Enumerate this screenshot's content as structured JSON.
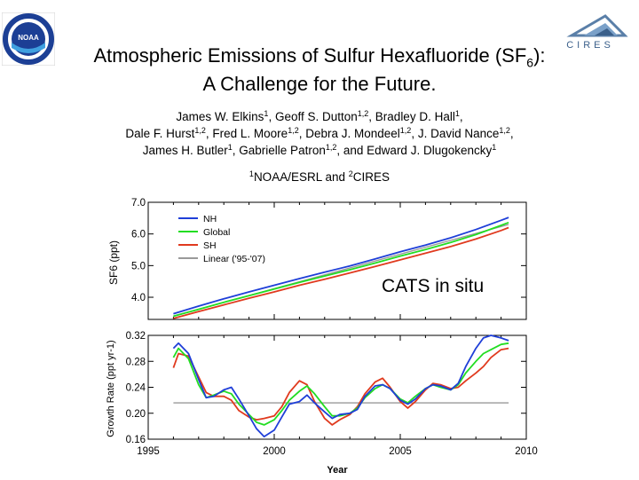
{
  "header": {
    "title_line1_pre": "Atmospheric Emissions of Sulfur Hexafluoride (SF",
    "title_line1_sub": "6",
    "title_line1_post": "):",
    "title_line2": "A Challenge for the Future.",
    "authors": [
      {
        "name": "James W. Elkins",
        "aff": "1"
      },
      {
        "name": "Geoff S. Dutton",
        "aff": "1,2"
      },
      {
        "name": "Bradley D. Hall",
        "aff": "1"
      },
      {
        "name": "Dale F. Hurst",
        "aff": "1,2"
      },
      {
        "name": "Fred L. Moore",
        "aff": "1,2"
      },
      {
        "name": "Debra J. Mondeel",
        "aff": "1,2"
      },
      {
        "name": "J. David Nance",
        "aff": "1,2"
      },
      {
        "name": "James H. Butler",
        "aff": "1"
      },
      {
        "name": "Gabrielle Patron",
        "aff": "1,2"
      },
      {
        "name": "Edward J. Dlugokencky",
        "aff": "1"
      }
    ],
    "and_word": "and",
    "affiliation": {
      "n1": "1",
      "org1": "NOAA/ESRL",
      "and": "and",
      "n2": "2",
      "org2": "CIRES"
    }
  },
  "logos": {
    "noaa": "NOAA",
    "cires": "CIRES"
  },
  "annotation": "CATS in situ",
  "colors": {
    "NH": "#1f3fd8",
    "Global": "#22dd22",
    "SH": "#e03a1e",
    "Linear": "#9a9a9a"
  },
  "chart_data": [
    {
      "type": "line",
      "ylabel": "SF6 (ppt)",
      "ylim": [
        3.3,
        7.0
      ],
      "xlim": [
        1995,
        2010
      ],
      "yticks": [
        "4.0",
        "5.0",
        "6.0",
        "7.0"
      ],
      "legend_position": "top-left",
      "series": [
        {
          "name": "NH",
          "color": "#1f3fd8",
          "points": [
            [
              1996.0,
              3.48
            ],
            [
              1997.0,
              3.72
            ],
            [
              1998.0,
              3.95
            ],
            [
              1999.0,
              4.17
            ],
            [
              2000.0,
              4.38
            ],
            [
              2001.0,
              4.59
            ],
            [
              2002.0,
              4.79
            ],
            [
              2003.0,
              4.99
            ],
            [
              2004.0,
              5.21
            ],
            [
              2005.0,
              5.44
            ],
            [
              2006.0,
              5.65
            ],
            [
              2007.0,
              5.88
            ],
            [
              2008.0,
              6.14
            ],
            [
              2009.0,
              6.43
            ],
            [
              2009.3,
              6.52
            ]
          ]
        },
        {
          "name": "Global",
          "color": "#22dd22",
          "points": [
            [
              1996.0,
              3.4
            ],
            [
              1997.0,
              3.62
            ],
            [
              1998.0,
              3.84
            ],
            [
              1999.0,
              4.05
            ],
            [
              2000.0,
              4.26
            ],
            [
              2001.0,
              4.47
            ],
            [
              2002.0,
              4.67
            ],
            [
              2003.0,
              4.87
            ],
            [
              2004.0,
              5.08
            ],
            [
              2005.0,
              5.3
            ],
            [
              2006.0,
              5.51
            ],
            [
              2007.0,
              5.73
            ],
            [
              2008.0,
              5.98
            ],
            [
              2009.0,
              6.27
            ],
            [
              2009.3,
              6.36
            ]
          ]
        },
        {
          "name": "SH",
          "color": "#e03a1e",
          "points": [
            [
              1996.0,
              3.33
            ],
            [
              1997.0,
              3.55
            ],
            [
              1998.0,
              3.76
            ],
            [
              1999.0,
              3.97
            ],
            [
              2000.0,
              4.17
            ],
            [
              2001.0,
              4.38
            ],
            [
              2002.0,
              4.57
            ],
            [
              2003.0,
              4.77
            ],
            [
              2004.0,
              4.97
            ],
            [
              2005.0,
              5.18
            ],
            [
              2006.0,
              5.39
            ],
            [
              2007.0,
              5.6
            ],
            [
              2008.0,
              5.84
            ],
            [
              2009.0,
              6.11
            ],
            [
              2009.3,
              6.2
            ]
          ]
        },
        {
          "name": "Linear ('95-'07)",
          "color": "#9a9a9a",
          "points": [
            [
              1996.0,
              3.4
            ],
            [
              2009.3,
              6.3
            ]
          ]
        }
      ]
    },
    {
      "type": "line",
      "ylabel": "Growth Rate (ppt yr-1)",
      "xlabel": "Year",
      "ylim": [
        0.16,
        0.32
      ],
      "xlim": [
        1995,
        2010
      ],
      "yticks": [
        "0.16",
        "0.20",
        "0.24",
        "0.28",
        "0.32"
      ],
      "xticks": [
        "1995",
        "2000",
        "2005",
        "2010"
      ],
      "series": [
        {
          "name": "NH",
          "color": "#1f3fd8",
          "points": [
            [
              1996.0,
              0.3
            ],
            [
              1996.2,
              0.308
            ],
            [
              1996.6,
              0.292
            ],
            [
              1997.0,
              0.252
            ],
            [
              1997.3,
              0.224
            ],
            [
              1997.6,
              0.226
            ],
            [
              1998.0,
              0.236
            ],
            [
              1998.3,
              0.24
            ],
            [
              1998.6,
              0.222
            ],
            [
              1999.0,
              0.196
            ],
            [
              1999.3,
              0.176
            ],
            [
              1999.6,
              0.164
            ],
            [
              2000.0,
              0.174
            ],
            [
              2000.3,
              0.194
            ],
            [
              2000.6,
              0.214
            ],
            [
              2001.0,
              0.218
            ],
            [
              2001.3,
              0.228
            ],
            [
              2001.6,
              0.216
            ],
            [
              2002.0,
              0.202
            ],
            [
              2002.3,
              0.192
            ],
            [
              2002.6,
              0.198
            ],
            [
              2003.0,
              0.2
            ],
            [
              2003.3,
              0.206
            ],
            [
              2003.6,
              0.226
            ],
            [
              2004.0,
              0.242
            ],
            [
              2004.3,
              0.244
            ],
            [
              2004.6,
              0.238
            ],
            [
              2005.0,
              0.22
            ],
            [
              2005.3,
              0.214
            ],
            [
              2005.6,
              0.222
            ],
            [
              2006.0,
              0.238
            ],
            [
              2006.3,
              0.244
            ],
            [
              2006.6,
              0.242
            ],
            [
              2007.0,
              0.236
            ],
            [
              2007.3,
              0.246
            ],
            [
              2007.6,
              0.272
            ],
            [
              2008.0,
              0.3
            ],
            [
              2008.3,
              0.316
            ],
            [
              2008.6,
              0.32
            ],
            [
              2009.0,
              0.316
            ],
            [
              2009.3,
              0.312
            ]
          ]
        },
        {
          "name": "Global",
          "color": "#22dd22",
          "points": [
            [
              1996.0,
              0.286
            ],
            [
              1996.2,
              0.3
            ],
            [
              1996.6,
              0.284
            ],
            [
              1997.0,
              0.244
            ],
            [
              1997.3,
              0.224
            ],
            [
              1997.6,
              0.228
            ],
            [
              1998.0,
              0.234
            ],
            [
              1998.3,
              0.23
            ],
            [
              1998.6,
              0.214
            ],
            [
              1999.0,
              0.198
            ],
            [
              1999.3,
              0.186
            ],
            [
              1999.6,
              0.182
            ],
            [
              2000.0,
              0.19
            ],
            [
              2000.3,
              0.204
            ],
            [
              2000.6,
              0.22
            ],
            [
              2001.0,
              0.234
            ],
            [
              2001.3,
              0.242
            ],
            [
              2001.6,
              0.23
            ],
            [
              2002.0,
              0.21
            ],
            [
              2002.3,
              0.196
            ],
            [
              2002.6,
              0.196
            ],
            [
              2003.0,
              0.2
            ],
            [
              2003.3,
              0.208
            ],
            [
              2003.6,
              0.224
            ],
            [
              2004.0,
              0.238
            ],
            [
              2004.3,
              0.244
            ],
            [
              2004.6,
              0.238
            ],
            [
              2005.0,
              0.222
            ],
            [
              2005.3,
              0.216
            ],
            [
              2005.6,
              0.226
            ],
            [
              2006.0,
              0.238
            ],
            [
              2006.3,
              0.244
            ],
            [
              2006.6,
              0.24
            ],
            [
              2007.0,
              0.236
            ],
            [
              2007.3,
              0.244
            ],
            [
              2007.6,
              0.262
            ],
            [
              2008.0,
              0.28
            ],
            [
              2008.3,
              0.292
            ],
            [
              2008.6,
              0.298
            ],
            [
              2009.0,
              0.306
            ],
            [
              2009.3,
              0.308
            ]
          ]
        },
        {
          "name": "SH",
          "color": "#e03a1e",
          "points": [
            [
              1996.0,
              0.27
            ],
            [
              1996.2,
              0.292
            ],
            [
              1996.6,
              0.288
            ],
            [
              1997.0,
              0.256
            ],
            [
              1997.3,
              0.232
            ],
            [
              1997.6,
              0.226
            ],
            [
              1998.0,
              0.226
            ],
            [
              1998.3,
              0.22
            ],
            [
              1998.6,
              0.204
            ],
            [
              1999.0,
              0.194
            ],
            [
              1999.3,
              0.19
            ],
            [
              1999.6,
              0.192
            ],
            [
              2000.0,
              0.196
            ],
            [
              2000.3,
              0.21
            ],
            [
              2000.6,
              0.232
            ],
            [
              2001.0,
              0.25
            ],
            [
              2001.3,
              0.244
            ],
            [
              2001.6,
              0.218
            ],
            [
              2002.0,
              0.192
            ],
            [
              2002.3,
              0.182
            ],
            [
              2002.6,
              0.19
            ],
            [
              2003.0,
              0.198
            ],
            [
              2003.3,
              0.21
            ],
            [
              2003.6,
              0.23
            ],
            [
              2004.0,
              0.248
            ],
            [
              2004.3,
              0.254
            ],
            [
              2004.6,
              0.24
            ],
            [
              2005.0,
              0.218
            ],
            [
              2005.3,
              0.208
            ],
            [
              2005.6,
              0.218
            ],
            [
              2006.0,
              0.236
            ],
            [
              2006.3,
              0.246
            ],
            [
              2006.6,
              0.244
            ],
            [
              2007.0,
              0.238
            ],
            [
              2007.3,
              0.24
            ],
            [
              2007.6,
              0.25
            ],
            [
              2008.0,
              0.262
            ],
            [
              2008.3,
              0.272
            ],
            [
              2008.6,
              0.286
            ],
            [
              2009.0,
              0.298
            ],
            [
              2009.3,
              0.3
            ]
          ]
        },
        {
          "name": "Linear ('95-'07)",
          "color": "#9a9a9a",
          "points": [
            [
              1996.0,
              0.216
            ],
            [
              2009.3,
              0.216
            ]
          ]
        }
      ]
    }
  ]
}
